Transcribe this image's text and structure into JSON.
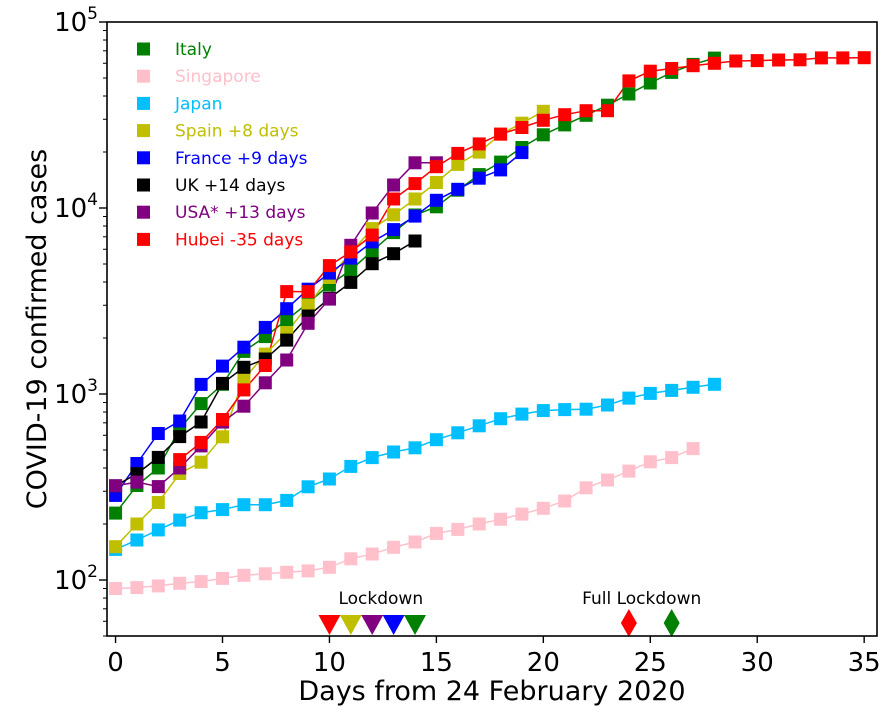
{
  "chart_data": {
    "type": "line",
    "title": "",
    "xlabel": "Days from 24 February 2020",
    "ylabel": "COVID-19 confirmed cases",
    "xlim": [
      -0.4,
      35.6
    ],
    "ylim": [
      50,
      100000
    ],
    "yscale": "log",
    "grid": false,
    "legend_position": "top-left",
    "x_ticks": [
      0,
      5,
      10,
      15,
      20,
      25,
      30,
      35
    ],
    "x_tick_labels": [
      "0",
      "5",
      "10",
      "15",
      "20",
      "25",
      "30",
      "35"
    ],
    "y_ticks": [
      {
        "value": 100,
        "base": "10",
        "exp": "2"
      },
      {
        "value": 1000,
        "base": "10",
        "exp": "3"
      },
      {
        "value": 10000,
        "base": "10",
        "exp": "4"
      },
      {
        "value": 100000,
        "base": "10",
        "exp": "5"
      }
    ],
    "series": [
      {
        "name": "Italy",
        "color": "#008000",
        "x_start": 0,
        "values": [
          229,
          322,
          400,
          650,
          888,
          1128,
          1694,
          2036,
          2502,
          3089,
          3858,
          4636,
          5883,
          7375,
          9172,
          10149,
          12462,
          15113,
          17660,
          21157,
          24747,
          27980,
          31506,
          35713,
          41035,
          47021,
          53578,
          59138,
          63927
        ]
      },
      {
        "name": "Singapore",
        "color": "#ffc0cb",
        "x_start": 0,
        "values": [
          90,
          91,
          93,
          96,
          98,
          102,
          106,
          108,
          110,
          112,
          117,
          130,
          138,
          150,
          160,
          178,
          187,
          200,
          212,
          226,
          243,
          266,
          313,
          345,
          385,
          432,
          455,
          509
        ]
      },
      {
        "name": "Japan",
        "color": "#00bfff",
        "x_start": 0,
        "values": [
          146,
          164,
          186,
          210,
          230,
          239,
          254,
          254,
          268,
          317,
          349,
          408,
          455,
          488,
          514,
          568,
          619,
          675,
          737,
          780,
          814,
          824,
          829,
          873,
          950,
          1007,
          1046,
          1086,
          1128
        ]
      },
      {
        "name": "Spain +8 days",
        "color": "#bfbf00",
        "x_start": 0,
        "values": [
          151,
          200,
          261,
          374,
          430,
          589,
          1204,
          1639,
          2140,
          3004,
          4231,
          5753,
          7753,
          9191,
          11178,
          13716,
          17147,
          19980,
          24926,
          28572,
          33089
        ]
      },
      {
        "name": "France +9 days",
        "color": "#0000ff",
        "x_start": 0,
        "values": [
          285,
          423,
          613,
          716,
          1126,
          1412,
          1784,
          2281,
          2876,
          3661,
          4469,
          5380,
          6573,
          7652,
          9043,
          10995,
          12612,
          14459,
          16018,
          19856
        ]
      },
      {
        "name": "UK +14 days",
        "color": "#000000",
        "x_start": 0,
        "values": [
          321,
          373,
          456,
          590,
          707,
          1140,
          1391,
          1543,
          1950,
          2626,
          3269,
          3983,
          5018,
          5683,
          6650
        ]
      },
      {
        "name": "USA* +13 days",
        "color": "#800080",
        "x_start": 0,
        "values": [
          321,
          336,
          318,
          400,
          526,
          706,
          860,
          1149,
          1524,
          2399,
          3237,
          6300,
          9400,
          13300,
          17500,
          17500
        ]
      },
      {
        "name": "Hubei -35 days",
        "color": "#ff0000",
        "x_start": 3,
        "values": [
          444,
          549,
          729,
          1052,
          1423,
          3554,
          3554,
          4903,
          5806,
          7153,
          11177,
          13522,
          16678,
          19665,
          22112,
          24953,
          27100,
          29631,
          31728,
          33366,
          33366,
          48206,
          54406,
          56249,
          58182,
          59989,
          61682,
          62031,
          62442,
          62662,
          64084,
          64084,
          64287
        ]
      }
    ],
    "annotations": [
      {
        "label": "Lockdown",
        "label_x": 12.4,
        "markers": [
          {
            "x": 10,
            "color": "#ff0000",
            "shape": "triangle-down"
          },
          {
            "x": 11,
            "color": "#bfbf00",
            "shape": "triangle-down"
          },
          {
            "x": 12,
            "color": "#800080",
            "shape": "triangle-down"
          },
          {
            "x": 13,
            "color": "#0000ff",
            "shape": "triangle-down"
          },
          {
            "x": 14,
            "color": "#008000",
            "shape": "triangle-down"
          }
        ]
      },
      {
        "label": "Full Lockdown",
        "label_x": 24.6,
        "markers": [
          {
            "x": 24,
            "color": "#ff0000",
            "shape": "diamond"
          },
          {
            "x": 26,
            "color": "#008000",
            "shape": "diamond"
          }
        ]
      }
    ]
  }
}
